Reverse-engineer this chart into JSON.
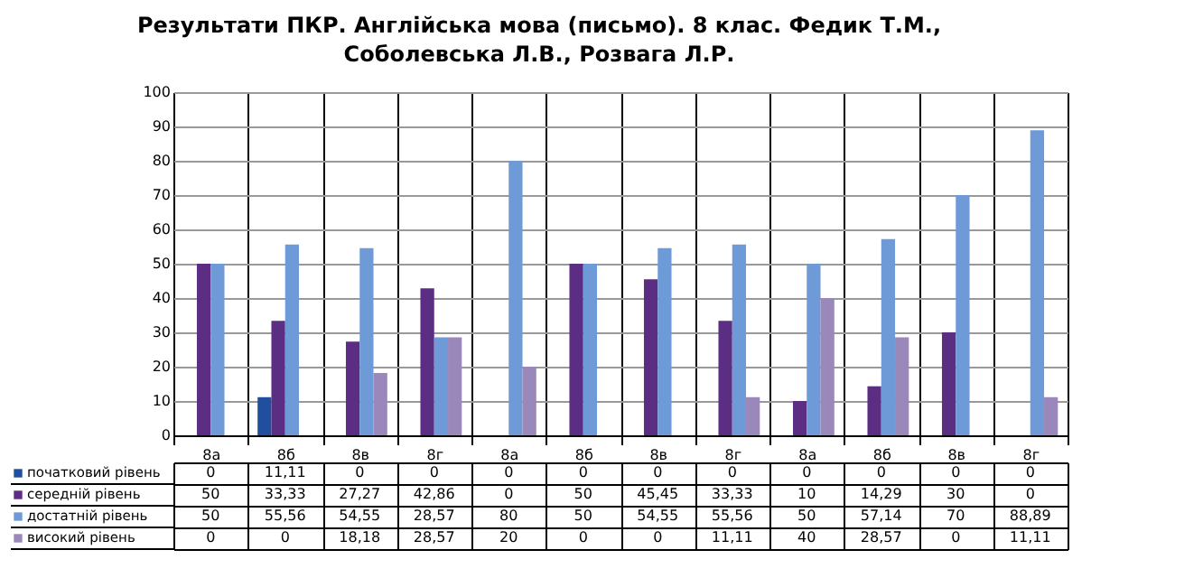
{
  "chart_data": {
    "type": "bar",
    "title": "Результати ПКР. Англійська мова (письмо). 8 клас. Федик Т.М.,\nСоболевська Л.В., Розвага Л.Р.",
    "categories": [
      "8а",
      "8б",
      "8в",
      "8г",
      "8а",
      "8б",
      "8в",
      "8г",
      "8а",
      "8б",
      "8в",
      "8г"
    ],
    "ylim": [
      0,
      100
    ],
    "yticks": [
      0,
      10,
      20,
      30,
      40,
      50,
      60,
      70,
      80,
      90,
      100
    ],
    "grid": true,
    "legend": "bottom",
    "series": [
      {
        "name": "початковий рівень",
        "color": "#1f4f9e",
        "values": [
          0,
          11.11,
          0,
          0,
          0,
          0,
          0,
          0,
          0,
          0,
          0,
          0
        ],
        "value_labels": [
          "0",
          "11,11",
          "0",
          "0",
          "0",
          "0",
          "0",
          "0",
          "0",
          "0",
          "0",
          "0"
        ]
      },
      {
        "name": "середній рівень",
        "color": "#5b2e84",
        "values": [
          50,
          33.33,
          27.27,
          42.86,
          0,
          50,
          45.45,
          33.33,
          10,
          14.29,
          30,
          0
        ],
        "value_labels": [
          "50",
          "33,33",
          "27,27",
          "42,86",
          "0",
          "50",
          "45,45",
          "33,33",
          "10",
          "14,29",
          "30",
          "0"
        ]
      },
      {
        "name": "достатній рівень",
        "color": "#6e9bd8",
        "values": [
          50,
          55.56,
          54.55,
          28.57,
          80,
          50,
          54.55,
          55.56,
          50,
          57.14,
          70,
          88.89
        ],
        "value_labels": [
          "50",
          "55,56",
          "54,55",
          "28,57",
          "80",
          "50",
          "54,55",
          "55,56",
          "50",
          "57,14",
          "70",
          "88,89"
        ]
      },
      {
        "name": "високий рівень",
        "color": "#9b88ba",
        "values": [
          0,
          0,
          18.18,
          28.57,
          20,
          0,
          0,
          11.11,
          40,
          28.57,
          0,
          11.11
        ],
        "value_labels": [
          "0",
          "0",
          "18,18",
          "28,57",
          "20",
          "0",
          "0",
          "11,11",
          "40",
          "28,57",
          "0",
          "11,11"
        ]
      }
    ]
  }
}
